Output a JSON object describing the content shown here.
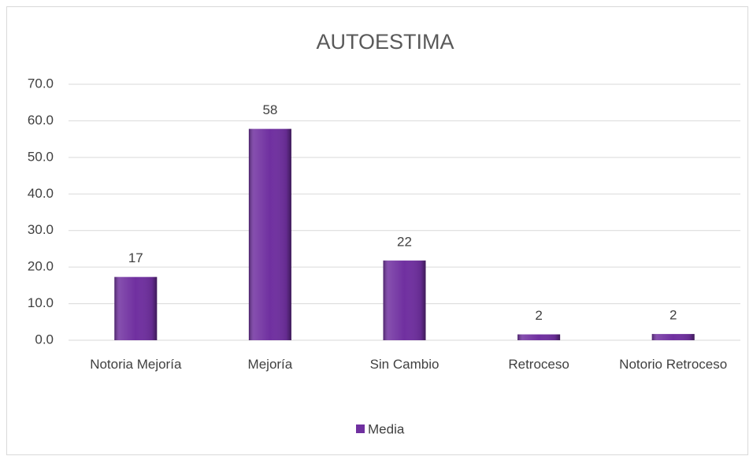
{
  "chart_data": {
    "type": "bar",
    "title": "AUTOESTIMA",
    "categories": [
      "Notoria Mejoría",
      "Mejoría",
      "Sin Cambio",
      "Retroceso",
      "Notorio Retroceso"
    ],
    "series": [
      {
        "name": "Media",
        "color": "#7030a0",
        "values": [
          17.3,
          57.8,
          21.8,
          1.6,
          1.7
        ],
        "value_labels": [
          "17",
          "58",
          "22",
          "2",
          "2"
        ]
      }
    ],
    "ylim": [
      0,
      70
    ],
    "yticks": [
      {
        "value": 0,
        "label": "0.0"
      },
      {
        "value": 10,
        "label": "10.0"
      },
      {
        "value": 20,
        "label": "20.0"
      },
      {
        "value": 30,
        "label": "30.0"
      },
      {
        "value": 40,
        "label": "40.0"
      },
      {
        "value": 50,
        "label": "50.0"
      },
      {
        "value": 60,
        "label": "60.0"
      },
      {
        "value": 70,
        "label": "70.0"
      }
    ],
    "grid": true,
    "legend": "bottom"
  }
}
